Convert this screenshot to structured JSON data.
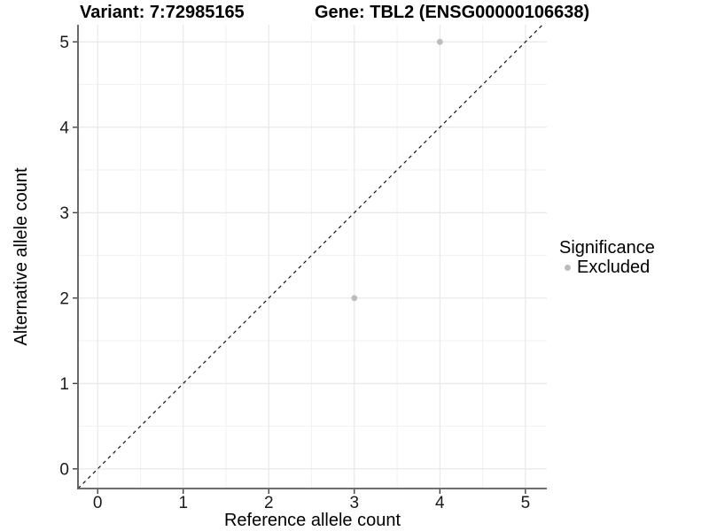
{
  "header": {
    "variant_title": "Variant: 7:72985165",
    "gene_title": "Gene: TBL2 (ENSG00000106638)"
  },
  "axes": {
    "x": {
      "label": "Reference allele count",
      "tick_labels": [
        "0",
        "1",
        "2",
        "3",
        "4",
        "5"
      ]
    },
    "y": {
      "label": "Alternative allele count",
      "tick_labels": [
        "0",
        "1",
        "2",
        "3",
        "4",
        "5"
      ]
    }
  },
  "legend": {
    "title": "Significance",
    "items": [
      {
        "label": "Excluded",
        "color": "#bcbcbc"
      }
    ]
  },
  "chart_data": {
    "type": "scatter",
    "title": "Variant: 7:72985165 | Gene: TBL2 (ENSG00000106638)",
    "xlabel": "Reference allele count",
    "ylabel": "Alternative allele count",
    "xlim": [
      -0.23,
      5.25
    ],
    "ylim": [
      -0.23,
      5.2
    ],
    "x_ticks": [
      0,
      1,
      2,
      3,
      4,
      5
    ],
    "y_ticks": [
      0,
      1,
      2,
      3,
      4,
      5
    ],
    "minor_ticks": [
      0.5,
      1.5,
      2.5,
      3.5,
      4.5
    ],
    "grid": "major+minor",
    "legend_position": "right",
    "series": [
      {
        "name": "Excluded",
        "color": "#bcbcbc",
        "marker": "circle",
        "points": [
          {
            "x": 4,
            "y": 5
          },
          {
            "x": 3,
            "y": 2
          }
        ]
      }
    ],
    "reference_line": {
      "kind": "identity y=x",
      "style": "dashed",
      "color": "#111111"
    },
    "colors": {
      "grid_major": "#e6e6e6",
      "grid_minor": "#f2f2f2",
      "axis_line": "#595959",
      "tick_mark": "#333333",
      "tick_text": "#1a1a1a"
    }
  }
}
